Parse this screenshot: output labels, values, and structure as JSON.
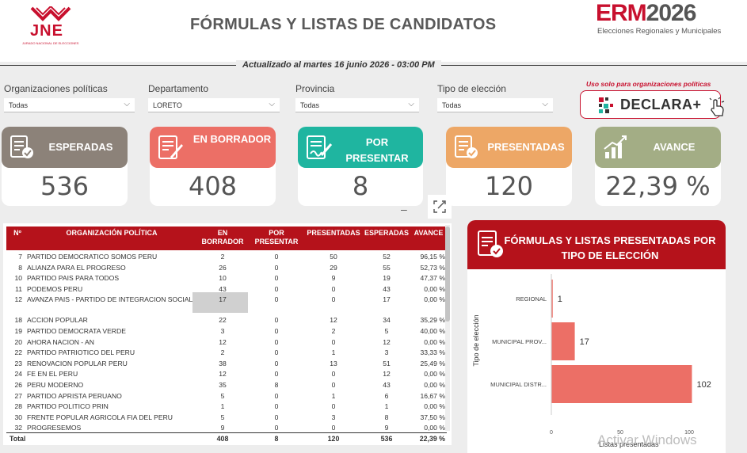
{
  "header": {
    "title": "FÓRMULAS Y LISTAS DE CANDIDATOS",
    "jne_logo": "JNE",
    "jne_sub": "JURADO NACIONAL DE ELECCIONES",
    "erm_logo_a": "ERM",
    "erm_logo_b": "2026",
    "erm_sub": "Elecciones Regionales y Municipales",
    "updated": "Actualizado al martes 16 junio 2026 - 03:00 PM"
  },
  "filters": [
    {
      "label": "Organizaciones políticas",
      "value": "Todas"
    },
    {
      "label": "Departamento",
      "value": "LORETO"
    },
    {
      "label": "Provincia",
      "value": "Todas"
    },
    {
      "label": "Tipo de elección",
      "value": "Todas"
    }
  ],
  "declara": {
    "note": "Uso solo para organizaciones políticas",
    "label": "DECLARA+"
  },
  "kpis": [
    {
      "title": "ESPERADAS",
      "value": "536",
      "color": "#8c8279"
    },
    {
      "title": "EN BORRADOR",
      "value": "408",
      "color": "#ec6f66"
    },
    {
      "title": "POR PRESENTAR",
      "value": "8",
      "color": "#1fb5a0"
    },
    {
      "title": "PRESENTADAS",
      "value": "120",
      "color": "#eda766"
    },
    {
      "title": "AVANCE",
      "value": "22,39 %",
      "color": "#a3ad85"
    }
  ],
  "table": {
    "columns": [
      "Nº",
      "ORGANIZACIÓN POLÍTICA",
      "EN BORRADOR",
      "POR PRESENTAR",
      "PRESENTADAS",
      "ESPERADAS",
      "AVANCE"
    ],
    "rows": [
      [
        "7",
        "PARTIDO DEMOCRATICO SOMOS PERU",
        "2",
        "0",
        "50",
        "52",
        "96,15 %"
      ],
      [
        "8",
        "ALIANZA PARA EL PROGRESO",
        "26",
        "0",
        "29",
        "55",
        "52,73 %"
      ],
      [
        "10",
        "PARTIDO PAIS PARA TODOS",
        "10",
        "0",
        "9",
        "19",
        "47,37 %"
      ],
      [
        "11",
        "PODEMOS PERU",
        "43",
        "0",
        "0",
        "43",
        "0,00 %"
      ],
      [
        "12",
        "AVANZA PAIS - PARTIDO DE INTEGRACION SOCIAL",
        "17",
        "0",
        "0",
        "17",
        "0,00 %"
      ],
      [
        "18",
        "ACCION POPULAR",
        "22",
        "0",
        "12",
        "34",
        "35,29 %"
      ],
      [
        "19",
        "PARTIDO DEMOCRATA VERDE",
        "3",
        "0",
        "2",
        "5",
        "40,00 %"
      ],
      [
        "20",
        "AHORA NACION - AN",
        "12",
        "0",
        "0",
        "12",
        "0,00 %"
      ],
      [
        "22",
        "PARTIDO PATRIOTICO DEL PERU",
        "2",
        "0",
        "1",
        "3",
        "33,33 %"
      ],
      [
        "23",
        "RENOVACION POPULAR PERU",
        "38",
        "0",
        "13",
        "51",
        "25,49 %"
      ],
      [
        "24",
        "FE EN EL PERU",
        "12",
        "0",
        "0",
        "12",
        "0,00 %"
      ],
      [
        "26",
        "PERU MODERNO",
        "35",
        "8",
        "0",
        "43",
        "0,00 %"
      ],
      [
        "27",
        "PARTIDO APRISTA PERUANO",
        "5",
        "0",
        "1",
        "6",
        "16,67 %"
      ],
      [
        "28",
        "PARTIDO POLITICO PRIN",
        "1",
        "0",
        "0",
        "1",
        "0,00 %"
      ],
      [
        "30",
        "FRENTE POPULAR AGRICOLA FIA DEL PERU",
        "5",
        "0",
        "3",
        "8",
        "37,50 %"
      ],
      [
        "32",
        "PROGRESEMOS",
        "9",
        "0",
        "0",
        "9",
        "0,00 %"
      ]
    ],
    "total": [
      "Total",
      "408",
      "8",
      "120",
      "536",
      "22,39 %"
    ]
  },
  "chart_data": {
    "type": "bar",
    "orientation": "horizontal",
    "title": "FÓRMULAS Y LISTAS PRESENTADAS POR TIPO DE ELECCIÓN",
    "ylabel": "Tipo de elección",
    "xlabel": "Listas presentadas",
    "categories": [
      "REGIONAL",
      "MUNICIPAL PROV...",
      "MUNICIPAL DISTR..."
    ],
    "values": [
      1,
      17,
      102
    ],
    "xlim": [
      0,
      100
    ],
    "xticks": [
      "0",
      "50",
      "100"
    ],
    "bar_color": "#ec6f66"
  },
  "watermark": "Activar Windows"
}
